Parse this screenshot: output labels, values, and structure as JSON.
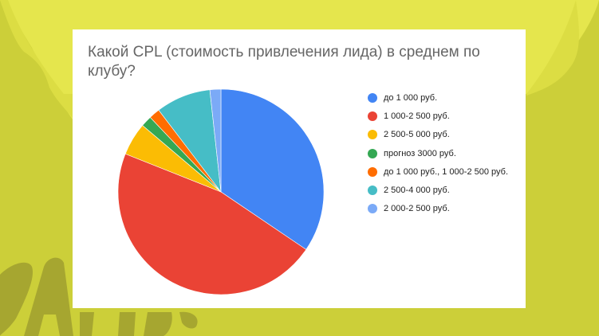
{
  "background": {
    "colors": {
      "base": "#cccf39",
      "light": "#e5e64d",
      "mid": "#dcdd43",
      "mascot": "#a6a630"
    }
  },
  "card": {
    "title_line1": "Какой CPL (стоимость привлечения лида) в среднем по",
    "title_line2": "клубу?"
  },
  "legend": {
    "items": [
      {
        "label": "до 1 000 руб.",
        "color": "#4285f4"
      },
      {
        "label": "1 000-2 500 руб.",
        "color": "#ea4335"
      },
      {
        "label": "2 500-5 000 руб.",
        "color": "#fbbc04"
      },
      {
        "label": "прогноз 3000 руб.",
        "color": "#34a853"
      },
      {
        "label": "до 1 000 руб., 1 000-2 500 руб.",
        "color": "#ff6d01"
      },
      {
        "label": "2 500-4 000 руб.",
        "color": "#46bdc6"
      },
      {
        "label": "2 000-2 500 руб.",
        "color": "#7baaf7"
      }
    ]
  },
  "chart_data": {
    "type": "pie",
    "title": "Какой CPL (стоимость привлечения лида) в среднем по клубу?",
    "categories": [
      "до 1 000 руб.",
      "1 000-2 500 руб.",
      "2 500-5 000 руб.",
      "прогноз 3000 руб.",
      "до 1 000 руб., 1 000-2 500 руб.",
      "2 500-4 000 руб.",
      "2 000-2 500 руб."
    ],
    "values": [
      20,
      27,
      3,
      1,
      1,
      5,
      1
    ],
    "percentages": [
      34.5,
      46.6,
      5.2,
      1.7,
      1.7,
      8.6,
      1.7
    ],
    "colors": [
      "#4285f4",
      "#ea4335",
      "#fbbc04",
      "#34a853",
      "#ff6d01",
      "#46bdc6",
      "#7baaf7"
    ],
    "start_angle_deg": 0,
    "direction": "clockwise",
    "legend_position": "right"
  }
}
